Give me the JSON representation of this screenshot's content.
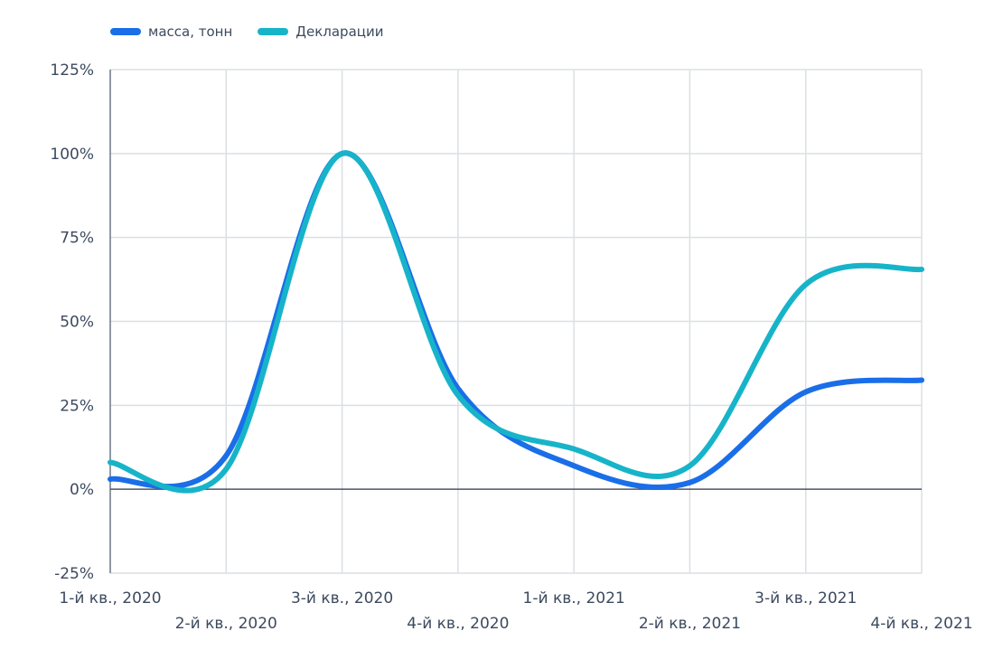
{
  "chart_data": {
    "type": "line",
    "title": "",
    "xlabel": "",
    "ylabel": "",
    "categories": [
      "1-й кв., 2020",
      "2-й кв., 2020",
      "3-й кв., 2020",
      "4-й кв., 2020",
      "1-й кв., 2021",
      "2-й кв., 2021",
      "3-й кв., 2021",
      "4-й кв., 2021"
    ],
    "series": [
      {
        "name": "масса, тонн",
        "color": "#1a6ee8",
        "values": [
          3,
          10,
          100,
          30,
          7,
          2,
          29,
          32.5
        ]
      },
      {
        "name": "Декларации",
        "color": "#17b4c9",
        "values": [
          8,
          6,
          100,
          28,
          12,
          7,
          61,
          65.5
        ]
      }
    ],
    "ylim": [
      -25,
      125
    ],
    "yticks": [
      -25,
      0,
      25,
      50,
      75,
      100,
      125
    ],
    "ytick_labels": [
      "-25%",
      "0%",
      "25%",
      "50%",
      "75%",
      "100%",
      "125%"
    ],
    "legend_position": "top-left",
    "grid": true,
    "smooth": true
  }
}
